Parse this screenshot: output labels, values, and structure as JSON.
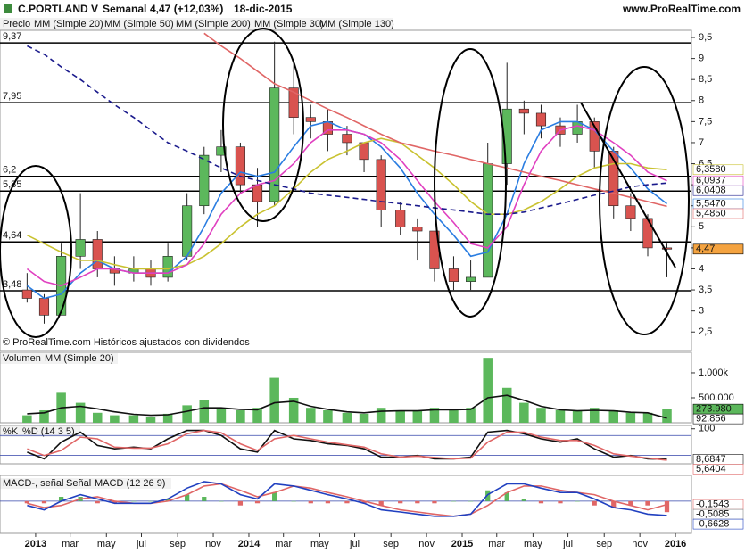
{
  "chart_data": [
    {
      "type": "candlestick",
      "title": "C.PORTLAND V",
      "period": "Semanal",
      "last": "4,47 (+12,03%)",
      "date": "18-dic-2015",
      "source": "www.ProRealTime.com",
      "footer": "© ProRealTime.com Históricos ajustados con dividendos",
      "name": "Precio",
      "last_label": "4,47",
      "color_up": "#5cb85c",
      "color_down": "#d9534f",
      "x": [
        2012.96,
        2013.04,
        2013.12,
        2013.21,
        2013.29,
        2013.37,
        2013.46,
        2013.54,
        2013.62,
        2013.71,
        2013.79,
        2013.87,
        2013.96,
        2014.04,
        2014.12,
        2014.21,
        2014.29,
        2014.37,
        2014.46,
        2014.54,
        2014.62,
        2014.71,
        2014.79,
        2014.87,
        2014.96,
        2015.04,
        2015.12,
        2015.21,
        2015.29,
        2015.37,
        2015.46,
        2015.54,
        2015.62,
        2015.71,
        2015.79,
        2015.87,
        2015.96
      ],
      "open": [
        3.5,
        3.3,
        2.9,
        4.3,
        4.7,
        4.0,
        3.9,
        4.0,
        3.8,
        4.3,
        5.5,
        6.7,
        6.9,
        6.0,
        5.6,
        8.3,
        7.6,
        7.5,
        7.2,
        7.0,
        6.6,
        5.4,
        5.0,
        4.9,
        4.0,
        3.7,
        3.8,
        6.5,
        7.8,
        7.7,
        7.4,
        7.2,
        7.5,
        6.8,
        5.5,
        5.2,
        4.5
      ],
      "high": [
        3.9,
        3.4,
        4.6,
        5.8,
        4.9,
        4.3,
        4.3,
        4.2,
        4.6,
        5.8,
        6.9,
        7.3,
        7.0,
        6.4,
        9.4,
        8.9,
        7.9,
        7.8,
        7.4,
        7.0,
        6.7,
        5.6,
        5.2,
        4.9,
        4.3,
        4.2,
        7.0,
        8.9,
        8.0,
        7.9,
        7.6,
        7.9,
        7.6,
        6.9,
        5.8,
        5.3,
        4.6
      ],
      "low": [
        3.2,
        2.7,
        2.9,
        4.0,
        3.8,
        3.6,
        3.7,
        3.6,
        3.7,
        4.2,
        5.3,
        6.3,
        5.8,
        5.0,
        5.5,
        7.2,
        7.1,
        6.8,
        6.7,
        6.3,
        5.0,
        4.8,
        4.2,
        3.7,
        3.5,
        3.5,
        3.8,
        6.0,
        7.2,
        7.1,
        6.9,
        7.0,
        6.4,
        5.2,
        4.9,
        4.3,
        3.8
      ],
      "close": [
        3.3,
        2.9,
        4.3,
        4.7,
        4.0,
        3.9,
        4.0,
        3.8,
        4.3,
        5.5,
        6.7,
        6.9,
        6.0,
        5.6,
        8.3,
        7.6,
        7.5,
        7.2,
        7.0,
        6.6,
        5.4,
        5.0,
        4.9,
        4.0,
        3.7,
        3.8,
        6.5,
        7.8,
        7.7,
        7.4,
        7.2,
        7.5,
        6.8,
        5.5,
        5.2,
        4.5,
        4.47
      ],
      "series": [
        {
          "name": "MM (Simple 20)",
          "color": "#2a7de1",
          "last_label": "5,5470",
          "values": [
            3.6,
            3.3,
            3.4,
            3.9,
            4.2,
            4.0,
            3.9,
            3.9,
            3.9,
            4.3,
            5.0,
            5.8,
            6.3,
            6.2,
            6.3,
            6.9,
            7.4,
            7.5,
            7.3,
            7.2,
            6.9,
            6.4,
            5.8,
            5.3,
            4.8,
            4.3,
            4.4,
            5.3,
            6.5,
            7.3,
            7.5,
            7.5,
            7.3,
            6.8,
            6.4,
            5.9,
            5.547
          ]
        },
        {
          "name": "MM (Simple 50)",
          "color": "#c9c230",
          "last_label": "6,3580",
          "values": [
            4.8,
            4.6,
            4.4,
            4.2,
            4.2,
            4.1,
            4.0,
            4.0,
            4.0,
            4.1,
            4.3,
            4.6,
            5.0,
            5.3,
            5.5,
            5.9,
            6.3,
            6.6,
            6.8,
            7.0,
            7.1,
            7.0,
            6.7,
            6.4,
            6.0,
            5.6,
            5.3,
            5.3,
            5.4,
            5.6,
            5.9,
            6.2,
            6.4,
            6.5,
            6.5,
            6.4,
            6.358
          ]
        },
        {
          "name": "MM (Simple 200)",
          "color": "#e06666",
          "last_label": "5,4850",
          "values": [
            null,
            null,
            null,
            null,
            null,
            null,
            null,
            null,
            null,
            null,
            9.6,
            9.3,
            9.0,
            8.7,
            8.4,
            8.2,
            8.0,
            7.8,
            7.6,
            7.4,
            7.2,
            7.0,
            6.9,
            6.8,
            6.7,
            6.6,
            6.5,
            6.4,
            6.3,
            6.2,
            6.1,
            6.0,
            5.9,
            5.8,
            5.7,
            5.6,
            5.485
          ]
        },
        {
          "name": "MM (Simple 30)",
          "color": "#e040c0",
          "last_label": "6,0937",
          "values": [
            4.0,
            3.7,
            3.6,
            3.8,
            4.0,
            4.0,
            3.9,
            3.9,
            3.9,
            4.1,
            4.6,
            5.3,
            5.8,
            6.0,
            6.1,
            6.5,
            7.0,
            7.3,
            7.3,
            7.2,
            7.0,
            6.6,
            6.1,
            5.6,
            5.1,
            4.6,
            4.5,
            5.0,
            6.0,
            6.8,
            7.3,
            7.4,
            7.3,
            7.0,
            6.7,
            6.3,
            6.0937
          ]
        },
        {
          "name": "MM (Simple 130)",
          "color": "#1a1a8c",
          "dashed": true,
          "last_label": "6,0408",
          "values": [
            9.3,
            9.1,
            8.8,
            8.5,
            8.2,
            7.9,
            7.6,
            7.3,
            7.0,
            6.8,
            6.6,
            6.4,
            6.2,
            6.1,
            6.0,
            5.9,
            5.8,
            5.75,
            5.7,
            5.65,
            5.6,
            5.55,
            5.5,
            5.45,
            5.4,
            5.35,
            5.3,
            5.3,
            5.35,
            5.45,
            5.55,
            5.65,
            5.75,
            5.85,
            5.95,
            6.0,
            6.0408
          ]
        }
      ],
      "levels": [
        {
          "value": 9.37,
          "label": "9,37"
        },
        {
          "value": 7.95,
          "label": "7,95"
        },
        {
          "value": 6.2,
          "label": "6,2"
        },
        {
          "value": 5.85,
          "label": "5,85"
        },
        {
          "value": 4.64,
          "label": "4,64"
        },
        {
          "value": 3.48,
          "label": "3,48"
        }
      ],
      "ylim": [
        2.06,
        9.67
      ],
      "yticks": [
        {
          "value": 2.5,
          "label": "2,5"
        },
        3,
        {
          "value": 3.5,
          "label": "3,5"
        },
        4,
        {
          "value": 4.5,
          "label": "4,5"
        },
        5,
        {
          "value": 5.5,
          "label": "5,5"
        },
        6,
        {
          "value": 6.5,
          "label": "6,5"
        },
        7,
        {
          "value": 7.5,
          "label": "7,5"
        },
        8,
        {
          "value": 8.5,
          "label": "8,5"
        },
        9,
        {
          "value": 9.5,
          "label": "9,5"
        }
      ],
      "xlim": [
        2012.833,
        2016.075
      ],
      "xticks": [
        2013,
        {
          "value": 2013.162,
          "label": "mar"
        },
        {
          "value": 2013.332,
          "label": "may"
        },
        {
          "value": 2013.496,
          "label": "jul"
        },
        {
          "value": 2013.666,
          "label": "sep"
        },
        {
          "value": 2013.833,
          "label": "nov"
        },
        2014,
        {
          "value": 2014.162,
          "label": "mar"
        },
        {
          "value": 2014.332,
          "label": "may"
        },
        {
          "value": 2014.496,
          "label": "jul"
        },
        {
          "value": 2014.666,
          "label": "sep"
        },
        {
          "value": 2014.833,
          "label": "nov"
        },
        2015,
        {
          "value": 2015.162,
          "label": "mar"
        },
        {
          "value": 2015.332,
          "label": "may"
        },
        {
          "value": 2015.496,
          "label": "jul"
        },
        {
          "value": 2015.666,
          "label": "sep"
        },
        {
          "value": 2015.833,
          "label": "nov"
        },
        2016
      ]
    },
    {
      "type": "bar",
      "name": "Volumen",
      "color": "#5cb85c",
      "last_label": "273.980",
      "values": [
        150000,
        250000,
        600000,
        400000,
        200000,
        150000,
        150000,
        120000,
        180000,
        350000,
        450000,
        300000,
        250000,
        300000,
        900000,
        500000,
        300000,
        250000,
        200000,
        180000,
        300000,
        250000,
        250000,
        300000,
        250000,
        300000,
        1300000,
        700000,
        400000,
        300000,
        250000,
        250000,
        300000,
        250000,
        200000,
        200000,
        273980
      ],
      "series": [
        {
          "name": "MM (Simple 20)",
          "color": "#111111",
          "last_label": "92.856",
          "values": [
            180000,
            200000,
            300000,
            330000,
            280000,
            220000,
            170000,
            150000,
            160000,
            230000,
            300000,
            300000,
            270000,
            260000,
            400000,
            430000,
            330000,
            270000,
            220000,
            200000,
            230000,
            240000,
            240000,
            260000,
            260000,
            270000,
            500000,
            550000,
            450000,
            330000,
            260000,
            240000,
            250000,
            240000,
            210000,
            200000,
            92856
          ]
        }
      ],
      "ylim": [
        0,
        1410000
      ],
      "yticks": [
        {
          "value": 1000000,
          "label": "1.000k"
        },
        {
          "value": 500000,
          "label": "500.000"
        }
      ]
    },
    {
      "type": "line",
      "series": [
        {
          "name": "%K",
          "color": "#111111",
          "last_label": "8,6847",
          "values": [
            30,
            10,
            60,
            90,
            50,
            40,
            45,
            40,
            70,
            95,
            95,
            80,
            40,
            30,
            95,
            70,
            65,
            55,
            50,
            40,
            15,
            15,
            20,
            10,
            10,
            15,
            90,
            95,
            85,
            70,
            60,
            70,
            40,
            15,
            20,
            10,
            8.6847
          ]
        },
        {
          "name": "%D (14 3 5)",
          "color": "#e06666",
          "last_label": "5,6404",
          "values": [
            40,
            20,
            35,
            75,
            70,
            45,
            42,
            42,
            55,
            85,
            95,
            88,
            55,
            35,
            70,
            80,
            70,
            60,
            52,
            45,
            25,
            15,
            18,
            14,
            10,
            12,
            60,
            90,
            90,
            75,
            65,
            65,
            50,
            25,
            18,
            12,
            5.6404
          ]
        }
      ],
      "levels": [
        80,
        20
      ],
      "ylim": [
        -5,
        110
      ],
      "yticks": [
        100
      ]
    },
    {
      "type": "line",
      "histogram": {
        "name": "MACD-, señal",
        "color_up": "#5cb85c",
        "color_down": "#e06666",
        "last_label": "-0,5085",
        "values": [
          -0.1,
          -0.1,
          0.2,
          0.2,
          -0.1,
          -0.1,
          0.0,
          0.0,
          0.1,
          0.3,
          0.2,
          0.0,
          -0.2,
          -0.1,
          0.4,
          0.0,
          -0.1,
          -0.1,
          -0.1,
          -0.1,
          -0.2,
          -0.1,
          -0.1,
          -0.1,
          0.0,
          0.0,
          0.5,
          0.4,
          0.1,
          -0.1,
          -0.1,
          0.0,
          -0.2,
          -0.3,
          -0.2,
          -0.2,
          -0.5085
        ]
      },
      "series": [
        {
          "name": "Señal",
          "color": "#e06666",
          "last_label": "-0,1543",
          "values": [
            -0.1,
            -0.3,
            -0.2,
            0.1,
            0.2,
            0.0,
            -0.1,
            -0.1,
            0.0,
            0.3,
            0.7,
            0.8,
            0.5,
            0.2,
            0.4,
            0.7,
            0.6,
            0.4,
            0.2,
            0.0,
            -0.2,
            -0.4,
            -0.5,
            -0.6,
            -0.7,
            -0.6,
            -0.2,
            0.4,
            0.7,
            0.7,
            0.5,
            0.4,
            0.3,
            0.0,
            -0.2,
            -0.4,
            -0.1543
          ]
        },
        {
          "name": "MACD (12 26 9)",
          "color": "#2040c0",
          "last_label": "-0,6628",
          "values": [
            -0.2,
            -0.4,
            0.0,
            0.3,
            0.1,
            -0.1,
            -0.1,
            -0.1,
            0.1,
            0.6,
            0.9,
            0.8,
            0.3,
            0.1,
            0.8,
            0.7,
            0.5,
            0.3,
            0.1,
            -0.1,
            -0.4,
            -0.5,
            -0.6,
            -0.7,
            -0.7,
            -0.6,
            0.3,
            0.8,
            0.8,
            0.6,
            0.4,
            0.4,
            0.1,
            -0.3,
            -0.4,
            -0.6,
            -0.6628
          ]
        }
      ],
      "levels": [
        0
      ],
      "ylim": [
        -1.49,
        1.19
      ]
    }
  ]
}
